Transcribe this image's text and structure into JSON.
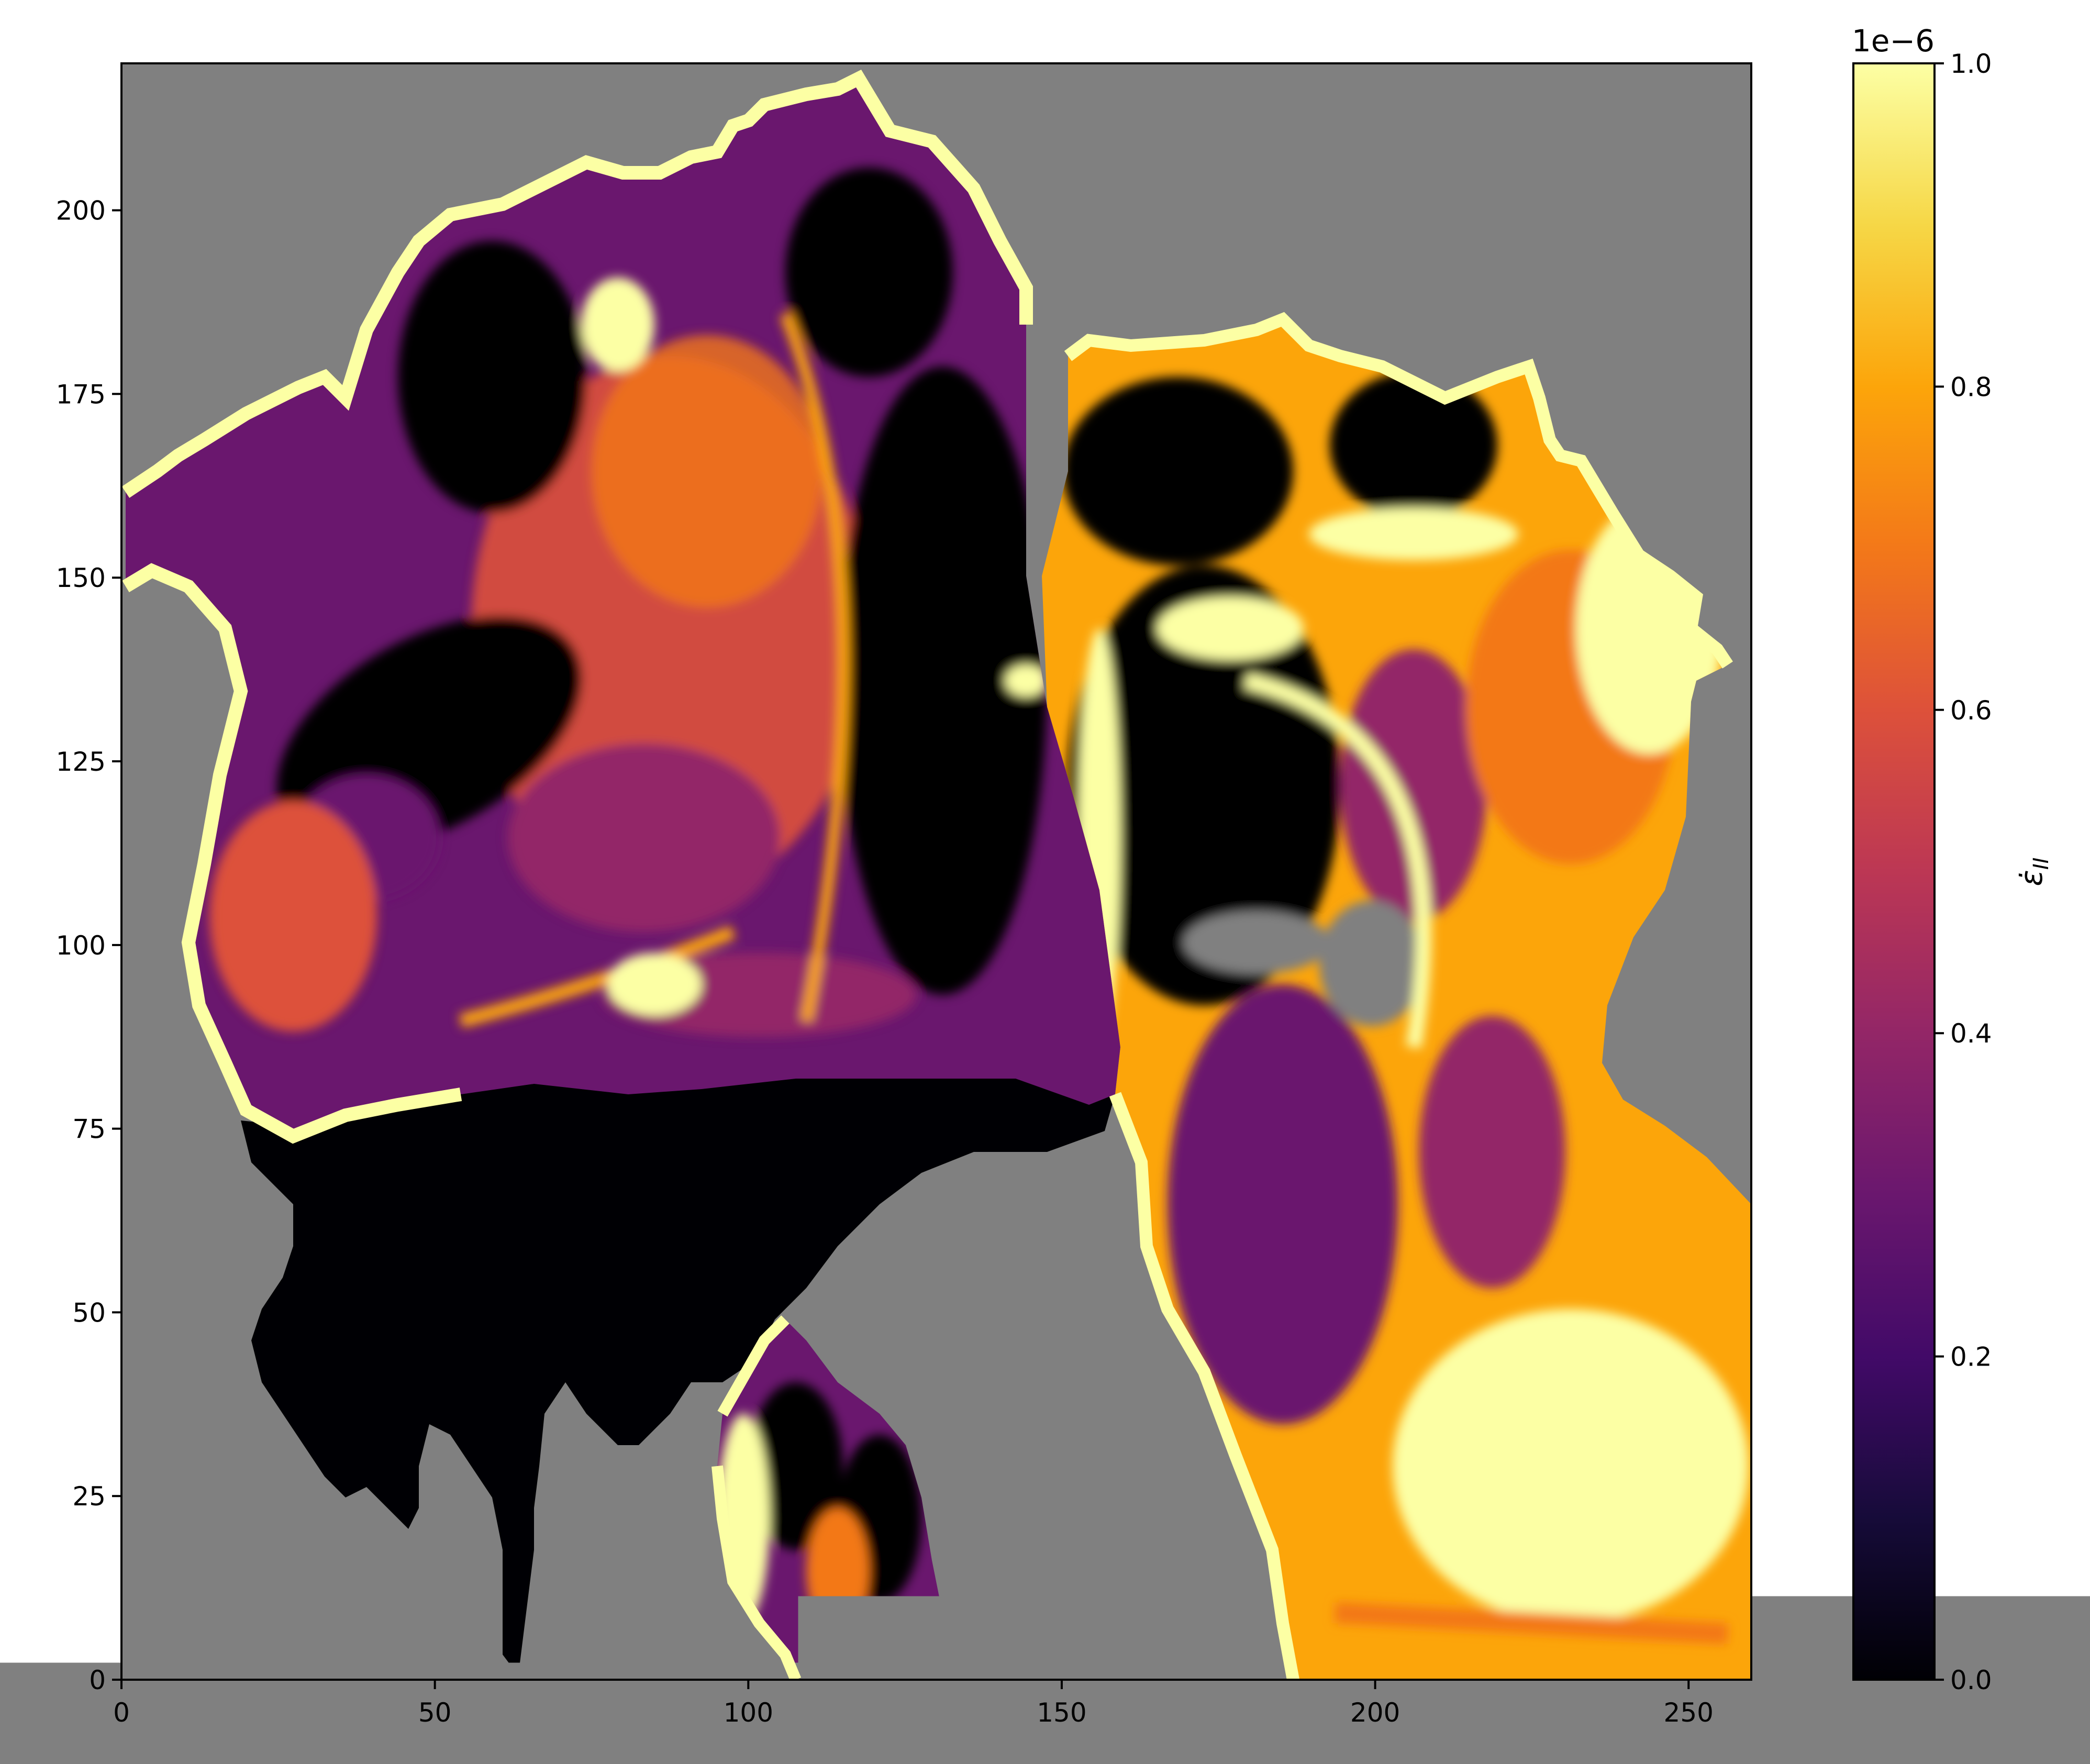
{
  "chart_data": {
    "type": "heatmap",
    "title": "",
    "xlabel": "",
    "ylabel": "",
    "xlim": [
      0,
      260
    ],
    "ylim": [
      0,
      220
    ],
    "xticks": [
      0,
      50,
      100,
      150,
      200,
      250
    ],
    "yticks": [
      0,
      25,
      50,
      75,
      100,
      125,
      150,
      175,
      200
    ],
    "colormap": "inferno",
    "mask_color": "#808080",
    "colorbar": {
      "label": "ε̇_II",
      "min": 0.0,
      "max": 1.0,
      "ticks": [
        0.0,
        0.2,
        0.4,
        0.6,
        0.8,
        1.0
      ],
      "tick_labels": [
        "0.0",
        "0.2",
        "0.4",
        "0.6",
        "0.8",
        "1.0"
      ],
      "offset_text": "1e−6",
      "placement": "right"
    },
    "grid": false,
    "description_values": "Gridded strain-rate field over an irregular land/ice mask; masked cells shown grey"
  }
}
